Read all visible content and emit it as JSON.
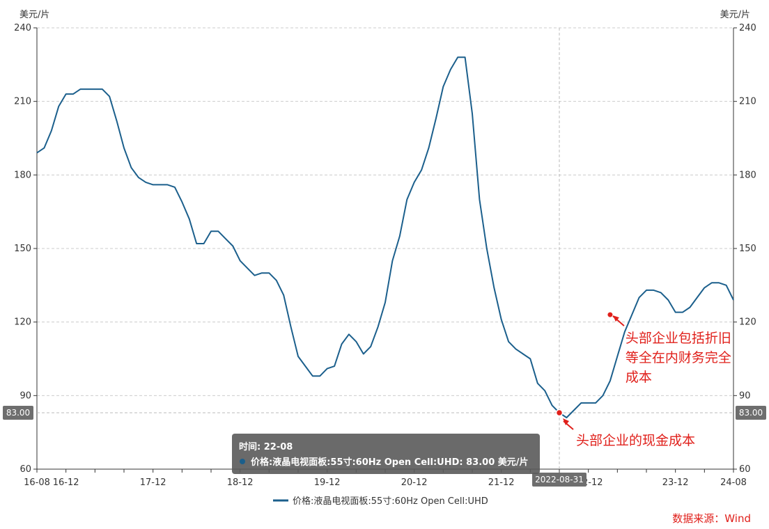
{
  "chart_data": {
    "type": "line",
    "y_unit_left": "美元/片",
    "y_unit_right": "美元/片",
    "ylim": [
      60,
      240
    ],
    "y_ticks": [
      60,
      90,
      120,
      150,
      180,
      210,
      240
    ],
    "x_tick_labels": [
      "16-08",
      "16-12",
      "17-12",
      "18-12",
      "19-12",
      "20-12",
      "21-12",
      "22-12",
      "23-12",
      "24-08"
    ],
    "x_tick_positions": [
      "2016-08",
      "2016-12",
      "2017-12",
      "2018-12",
      "2019-12",
      "2020-12",
      "2021-12",
      "2022-12",
      "2023-12",
      "2024-08"
    ],
    "grid": true,
    "legend_position": "bottom-center",
    "series": [
      {
        "name": "价格:液晶电视面板:55寸:60Hz Open Cell:UHD",
        "color": "#1b5f8c",
        "x": [
          "2016-08",
          "2016-09",
          "2016-10",
          "2016-11",
          "2016-12",
          "2017-01",
          "2017-02",
          "2017-03",
          "2017-04",
          "2017-05",
          "2017-06",
          "2017-07",
          "2017-08",
          "2017-09",
          "2017-10",
          "2017-11",
          "2017-12",
          "2018-01",
          "2018-02",
          "2018-03",
          "2018-04",
          "2018-05",
          "2018-06",
          "2018-07",
          "2018-08",
          "2018-09",
          "2018-10",
          "2018-11",
          "2018-12",
          "2019-01",
          "2019-02",
          "2019-03",
          "2019-04",
          "2019-05",
          "2019-06",
          "2019-07",
          "2019-08",
          "2019-09",
          "2019-10",
          "2019-11",
          "2019-12",
          "2020-01",
          "2020-02",
          "2020-03",
          "2020-04",
          "2020-05",
          "2020-06",
          "2020-07",
          "2020-08",
          "2020-09",
          "2020-10",
          "2020-11",
          "2020-12",
          "2021-01",
          "2021-02",
          "2021-03",
          "2021-04",
          "2021-05",
          "2021-06",
          "2021-07",
          "2021-08",
          "2021-09",
          "2021-10",
          "2021-11",
          "2021-12",
          "2022-01",
          "2022-02",
          "2022-03",
          "2022-04",
          "2022-05",
          "2022-06",
          "2022-07",
          "2022-08",
          "2022-09",
          "2022-10",
          "2022-11",
          "2022-12",
          "2023-01",
          "2023-02",
          "2023-03",
          "2023-04",
          "2023-05",
          "2023-06",
          "2023-07",
          "2023-08",
          "2023-09",
          "2023-10",
          "2023-11",
          "2023-12",
          "2024-01",
          "2024-02",
          "2024-03",
          "2024-04",
          "2024-05",
          "2024-06",
          "2024-07",
          "2024-08"
        ],
        "values": [
          189,
          191,
          198,
          208,
          213,
          213,
          215,
          215,
          215,
          215,
          212,
          202,
          191,
          183,
          179,
          177,
          176,
          176,
          176,
          175,
          169,
          162,
          152,
          152,
          157,
          157,
          154,
          151,
          145,
          142,
          139,
          140,
          140,
          137,
          131,
          118,
          106,
          102,
          98,
          98,
          101,
          102,
          111,
          115,
          112,
          107,
          110,
          118,
          128,
          145,
          155,
          170,
          177,
          182,
          191,
          203,
          216,
          223,
          228,
          228,
          205,
          170,
          150,
          134,
          121,
          112,
          109,
          107,
          105,
          95,
          92,
          86,
          83,
          81,
          84,
          87,
          87,
          87,
          90,
          96,
          106,
          116,
          123,
          130,
          133,
          133,
          132,
          129,
          124,
          124,
          126,
          130,
          134,
          136,
          136,
          135,
          129
        ]
      }
    ],
    "highlight": {
      "x": "2022-08",
      "x_label": "2022-08-31",
      "y_badge_left": "83.00",
      "y_badge_right": "83.00"
    },
    "tooltip": {
      "title": "时间: 22-08",
      "row": "价格:液晶电视面板:55寸:60Hz Open Cell:UHD: 83.00  美元/片"
    },
    "annotations": [
      {
        "text_lines": [
          "头部企业包括折旧",
          "等全在内财务完全",
          "成本"
        ],
        "x": "2023-03",
        "y": 123
      },
      {
        "text_lines": [
          "头部企业的现金成本"
        ],
        "x": "2022-08",
        "y": 83
      }
    ],
    "source": "数据来源：Wind"
  }
}
